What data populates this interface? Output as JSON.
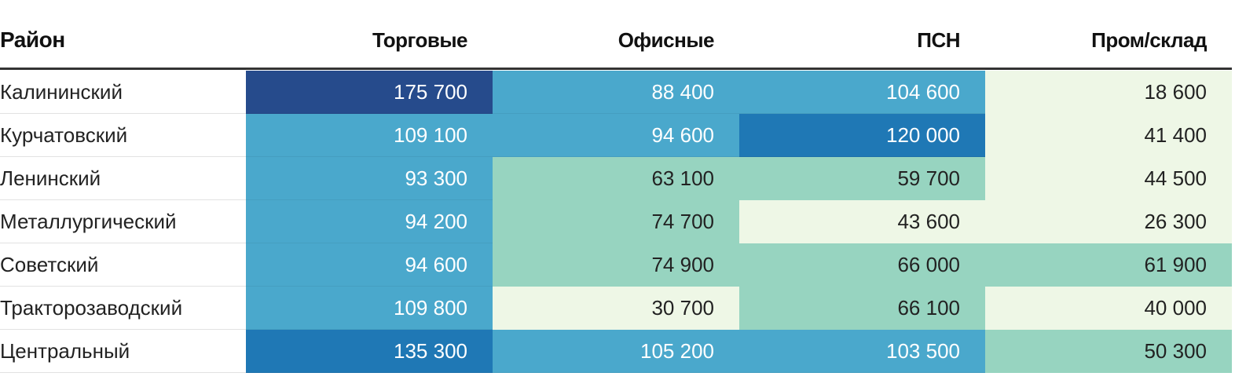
{
  "table": {
    "header": [
      "Район",
      "Торговые",
      "Офисные",
      "ПСН",
      "Пром/склад"
    ],
    "rows": [
      [
        "Калининский",
        "175 700",
        "88 400",
        "104 600",
        "18 600"
      ],
      [
        "Курчатовский",
        "109 100",
        "94 600",
        "120 000",
        "41 400"
      ],
      [
        "Ленинский",
        "93 300",
        "63 100",
        "59 700",
        "44 500"
      ],
      [
        "Металлургический",
        "94 200",
        "74 700",
        "43 600",
        "26 300"
      ],
      [
        "Советский",
        "94 600",
        "74 900",
        "66 000",
        "61 900"
      ],
      [
        "Тракторозаводский",
        "109 800",
        "30 700",
        "66 100",
        "40 000"
      ],
      [
        "Центральный",
        "135 300",
        "105 200",
        "103 500",
        "50 300"
      ]
    ],
    "cell_colors": [
      [
        "#264b8c",
        "#4aa8cc",
        "#4aa8cc",
        "#eef7e6"
      ],
      [
        "#4aa8cc",
        "#4aa8cc",
        "#1f78b5",
        "#eef7e6"
      ],
      [
        "#4aa8cc",
        "#97d4c0",
        "#97d4c0",
        "#eef7e6"
      ],
      [
        "#4aa8cc",
        "#97d4c0",
        "#eef7e6",
        "#eef7e6"
      ],
      [
        "#4aa8cc",
        "#97d4c0",
        "#97d4c0",
        "#97d4c0"
      ],
      [
        "#4aa8cc",
        "#eef7e6",
        "#97d4c0",
        "#eef7e6"
      ],
      [
        "#1f78b5",
        "#4aa8cc",
        "#4aa8cc",
        "#97d4c0"
      ]
    ]
  }
}
